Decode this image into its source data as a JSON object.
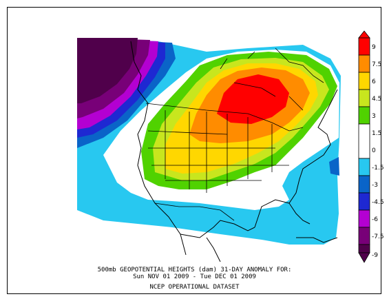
{
  "caption": {
    "line1": "500mb GEOPOTENTIAL HEIGHTS (dam)    31-DAY ANOMALY FOR:",
    "line2": "Sun NOV 01 2009 - Tue DEC 01 2009",
    "line3": "NCEP OPERATIONAL DATASET"
  },
  "legend": {
    "labels": [
      "9",
      "7.5",
      "6",
      "4.5",
      "3",
      "1.5",
      "0",
      "-1.5",
      "-3",
      "-4.5",
      "-6",
      "-7.5",
      "-9"
    ],
    "colors": [
      "#ff0000",
      "#ff8c00",
      "#ffd700",
      "#c8e61e",
      "#50d200",
      "#ffffff",
      "#28c8f0",
      "#0a64c8",
      "#1e28d2",
      "#b400d2",
      "#780078",
      "#50004b"
    ]
  },
  "colors": {
    "deep_purple": "#50004b",
    "purple": "#780078",
    "magenta": "#b400d2",
    "blue": "#1e28d2",
    "mid_blue": "#0a64c8",
    "cyan": "#28c8f0",
    "white": "#ffffff",
    "green": "#50d200",
    "yellow_green": "#c8e61e",
    "yellow": "#ffd700",
    "orange": "#ff8c00",
    "red": "#ff0000"
  }
}
